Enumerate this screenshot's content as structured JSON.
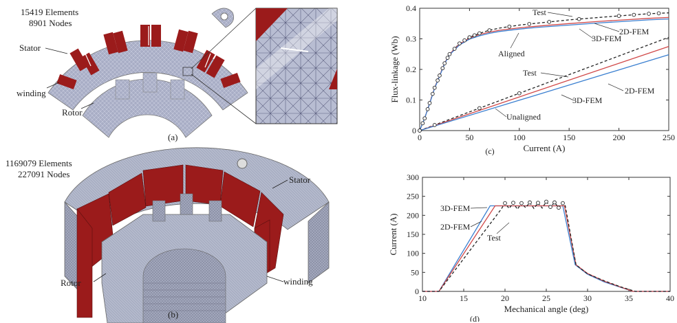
{
  "figure": {
    "panel_a": {
      "elements": "15419 Elements",
      "nodes": "8901 Nodes",
      "stator": "Stator",
      "winding": "winding",
      "rotor": "Rotor",
      "caption": "(a)"
    },
    "panel_b": {
      "elements": "1169079 Elements",
      "nodes": "227091 Nodes",
      "stator": "Stator",
      "winding": "winding",
      "rotor": "Rotor",
      "caption": "(b)"
    },
    "colors": {
      "winding": "#9b1b1b",
      "mesh": "#9aa0b8",
      "mesh_line": "#c7cbe0"
    }
  },
  "chart_data": [
    {
      "type": "line",
      "caption": "(c)",
      "xlabel": "Current (A)",
      "ylabel": "Flux-linkage (Wb)",
      "xlim": [
        0,
        250
      ],
      "ylim": [
        0,
        0.4
      ],
      "xticks": [
        "0",
        "50",
        "100",
        "150",
        "200",
        "250"
      ],
      "yticks": [
        "0",
        "0.1",
        "0.2",
        "0.3",
        "0.4"
      ],
      "annotations": [
        "Test",
        "2D-FEM",
        "3D-FEM",
        "Aligned",
        "Test",
        "2D-FEM",
        "3D-FEM",
        "Unaligned"
      ],
      "series": [
        {
          "name": "Test",
          "group": "aligned",
          "color": "#222222",
          "dash": true,
          "x": [
            0,
            5,
            10,
            15,
            20,
            25,
            30,
            40,
            50,
            60,
            70,
            80,
            100,
            120,
            150,
            180,
            200,
            230,
            250
          ],
          "y": [
            0,
            0.04,
            0.09,
            0.14,
            0.18,
            0.22,
            0.25,
            0.285,
            0.305,
            0.318,
            0.328,
            0.335,
            0.345,
            0.352,
            0.362,
            0.37,
            0.375,
            0.382,
            0.385
          ]
        },
        {
          "name": "2D-FEM",
          "group": "aligned",
          "color": "#d04848",
          "dash": false,
          "x": [
            0,
            5,
            10,
            15,
            20,
            25,
            30,
            40,
            50,
            60,
            70,
            80,
            100,
            120,
            150,
            180,
            200,
            230,
            250
          ],
          "y": [
            0,
            0.04,
            0.09,
            0.14,
            0.18,
            0.22,
            0.25,
            0.283,
            0.302,
            0.314,
            0.322,
            0.328,
            0.336,
            0.342,
            0.35,
            0.357,
            0.361,
            0.367,
            0.37
          ]
        },
        {
          "name": "3D-FEM",
          "group": "aligned",
          "color": "#3a7fd0",
          "dash": false,
          "x": [
            0,
            5,
            10,
            15,
            20,
            25,
            30,
            40,
            50,
            60,
            70,
            80,
            100,
            120,
            150,
            180,
            200,
            230,
            250
          ],
          "y": [
            0,
            0.04,
            0.088,
            0.138,
            0.178,
            0.218,
            0.248,
            0.28,
            0.299,
            0.31,
            0.318,
            0.324,
            0.332,
            0.338,
            0.345,
            0.352,
            0.356,
            0.362,
            0.365
          ]
        },
        {
          "name": "Test",
          "group": "unaligned",
          "color": "#222222",
          "dash": true,
          "x": [
            0,
            250
          ],
          "y": [
            0,
            0.305
          ]
        },
        {
          "name": "2D-FEM",
          "group": "unaligned",
          "color": "#d04848",
          "dash": false,
          "x": [
            0,
            250
          ],
          "y": [
            0,
            0.275
          ]
        },
        {
          "name": "3D-FEM",
          "group": "unaligned",
          "color": "#3a7fd0",
          "dash": false,
          "x": [
            0,
            250
          ],
          "y": [
            0,
            0.248
          ]
        }
      ],
      "markers": {
        "aligned_x": [
          0,
          3,
          5,
          8,
          10,
          13,
          15,
          18,
          20,
          23,
          25,
          28,
          30,
          35,
          40,
          45,
          50,
          55,
          60,
          70,
          90,
          110,
          130,
          160,
          200,
          215,
          230,
          240
        ],
        "unaligned_x": [
          0,
          15,
          60,
          100
        ]
      }
    },
    {
      "type": "line",
      "caption": "(d)",
      "xlabel": "Mechanical angle (deg)",
      "ylabel": "Current (A)",
      "xlim": [
        10,
        40
      ],
      "ylim": [
        0,
        300
      ],
      "xticks": [
        "10",
        "15",
        "20",
        "25",
        "30",
        "35",
        "40"
      ],
      "yticks": [
        "0",
        "50",
        "100",
        "150",
        "200",
        "250",
        "300"
      ],
      "annotations": [
        "3D-FEM",
        "2D-FEM",
        "Test"
      ],
      "series": [
        {
          "name": "3D-FEM",
          "color": "#3a7fd0",
          "dash": false,
          "x": [
            10,
            12,
            18.2,
            27,
            28.5,
            30,
            32,
            35.5,
            40
          ],
          "y": [
            0,
            0,
            225,
            225,
            70,
            45,
            25,
            0,
            0
          ]
        },
        {
          "name": "2D-FEM",
          "color": "#d04848",
          "dash": false,
          "x": [
            10,
            12,
            18.8,
            27.2,
            28.6,
            30,
            32,
            35.5,
            40
          ],
          "y": [
            0,
            0,
            225,
            225,
            70,
            47,
            27,
            0,
            0
          ]
        },
        {
          "name": "Test",
          "color": "#222222",
          "dash": true,
          "x": [
            10,
            12,
            19.5,
            20,
            20.5,
            21,
            21.5,
            22,
            22.5,
            23,
            23.5,
            24,
            24.5,
            25,
            25.5,
            26,
            26.5,
            27,
            27.3,
            28.6,
            30,
            32,
            34,
            35.8,
            40
          ],
          "y": [
            0,
            0,
            215,
            232,
            218,
            233,
            216,
            232,
            220,
            234,
            218,
            233,
            219,
            236,
            222,
            234,
            220,
            232,
            225,
            70,
            46,
            28,
            12,
            0,
            0
          ]
        }
      ],
      "markers": {
        "x": [
          20,
          21,
          22,
          23,
          24,
          25,
          25.5,
          26,
          26.5,
          27
        ]
      }
    }
  ]
}
